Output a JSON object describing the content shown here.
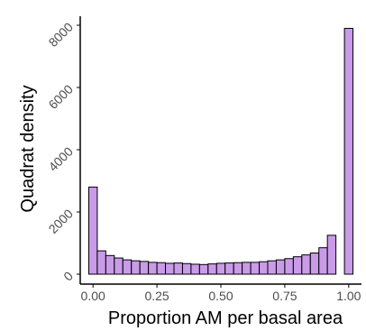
{
  "chart_data": {
    "type": "histogram",
    "title": "",
    "xlabel": "Proportion AM per basal area",
    "ylabel": "Quadrat density",
    "xlim": [
      -0.05,
      1.05
    ],
    "ylim": [
      0,
      8000
    ],
    "x_ticks": [
      0.0,
      0.25,
      0.5,
      0.75,
      1.0
    ],
    "x_tick_labels": [
      "0.00",
      "0.25",
      "0.50",
      "0.75",
      "1.00"
    ],
    "y_ticks": [
      0,
      2000,
      4000,
      6000,
      8000
    ],
    "y_tick_labels": [
      "0",
      "2000",
      "4000",
      "6000",
      "8000"
    ],
    "bin_width": 0.0333,
    "bins": [
      {
        "x": 0.0,
        "value": 2800
      },
      {
        "x": 0.0333,
        "value": 750
      },
      {
        "x": 0.0667,
        "value": 600
      },
      {
        "x": 0.1,
        "value": 520
      },
      {
        "x": 0.1333,
        "value": 460
      },
      {
        "x": 0.1667,
        "value": 430
      },
      {
        "x": 0.2,
        "value": 410
      },
      {
        "x": 0.2333,
        "value": 380
      },
      {
        "x": 0.2667,
        "value": 370
      },
      {
        "x": 0.3,
        "value": 350
      },
      {
        "x": 0.3333,
        "value": 360
      },
      {
        "x": 0.3667,
        "value": 340
      },
      {
        "x": 0.4,
        "value": 320
      },
      {
        "x": 0.4333,
        "value": 310
      },
      {
        "x": 0.4667,
        "value": 330
      },
      {
        "x": 0.5,
        "value": 350
      },
      {
        "x": 0.5333,
        "value": 360
      },
      {
        "x": 0.5667,
        "value": 370
      },
      {
        "x": 0.6,
        "value": 380
      },
      {
        "x": 0.6333,
        "value": 380
      },
      {
        "x": 0.6667,
        "value": 400
      },
      {
        "x": 0.7,
        "value": 430
      },
      {
        "x": 0.7333,
        "value": 460
      },
      {
        "x": 0.7667,
        "value": 500
      },
      {
        "x": 0.8,
        "value": 560
      },
      {
        "x": 0.8333,
        "value": 620
      },
      {
        "x": 0.8667,
        "value": 680
      },
      {
        "x": 0.9,
        "value": 850
      },
      {
        "x": 0.9333,
        "value": 1250
      },
      {
        "x": 1.0,
        "value": 7900
      }
    ],
    "colors": {
      "bar_fill": "#c99be8",
      "bar_stroke": "#000000",
      "axis": "#000000",
      "tick_label": "#4d4d4d",
      "axis_label": "#000000"
    },
    "grid": false,
    "legend": "none"
  }
}
